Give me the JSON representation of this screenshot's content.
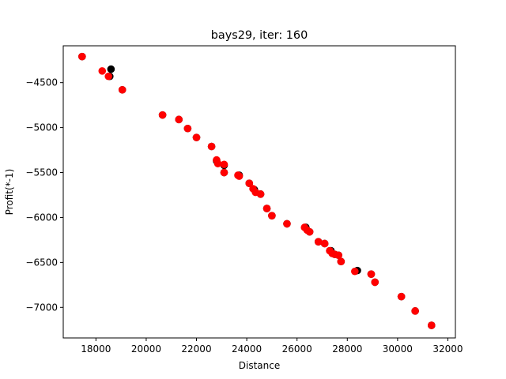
{
  "chart_data": {
    "type": "scatter",
    "title": "bays29, iter: 160",
    "xlabel": "Distance",
    "ylabel": "Profit(*-1)",
    "xlim": [
      16700,
      32300
    ],
    "ylim": [
      -7340,
      -4090
    ],
    "xticks": [
      18000,
      20000,
      22000,
      24000,
      26000,
      28000,
      30000,
      32000
    ],
    "yticks": [
      -7000,
      -6500,
      -6000,
      -5500,
      -5000,
      -4500
    ],
    "grid": false,
    "series": [
      {
        "color": "#000000",
        "points": [
          [
            17450,
            -4210
          ],
          [
            18600,
            -4350
          ],
          [
            18550,
            -4430
          ],
          [
            19050,
            -4580
          ],
          [
            20650,
            -4860
          ],
          [
            21300,
            -4910
          ],
          [
            21650,
            -5010
          ],
          [
            22000,
            -5110
          ],
          [
            22600,
            -5210
          ],
          [
            22800,
            -5370
          ],
          [
            23100,
            -5420
          ],
          [
            23100,
            -5500
          ],
          [
            23700,
            -5530
          ],
          [
            24100,
            -5620
          ],
          [
            24300,
            -5690
          ],
          [
            24550,
            -5740
          ],
          [
            24800,
            -5900
          ],
          [
            25000,
            -5980
          ],
          [
            25600,
            -6070
          ],
          [
            26350,
            -6110
          ],
          [
            26500,
            -6160
          ],
          [
            26850,
            -6270
          ],
          [
            27100,
            -6290
          ],
          [
            27350,
            -6370
          ],
          [
            27500,
            -6410
          ],
          [
            27650,
            -6420
          ],
          [
            27750,
            -6490
          ],
          [
            28400,
            -6590
          ],
          [
            28950,
            -6630
          ],
          [
            29100,
            -6720
          ],
          [
            30150,
            -6880
          ],
          [
            30700,
            -7040
          ],
          [
            31350,
            -7200
          ]
        ]
      },
      {
        "color": "#ff0000",
        "points": [
          [
            17450,
            -4210
          ],
          [
            18250,
            -4370
          ],
          [
            18500,
            -4430
          ],
          [
            19050,
            -4580
          ],
          [
            20650,
            -4860
          ],
          [
            21300,
            -4910
          ],
          [
            21650,
            -5010
          ],
          [
            22000,
            -5110
          ],
          [
            22600,
            -5210
          ],
          [
            22800,
            -5360
          ],
          [
            22850,
            -5400
          ],
          [
            23100,
            -5410
          ],
          [
            23100,
            -5500
          ],
          [
            23650,
            -5530
          ],
          [
            23700,
            -5540
          ],
          [
            24100,
            -5620
          ],
          [
            24250,
            -5680
          ],
          [
            24350,
            -5720
          ],
          [
            24550,
            -5740
          ],
          [
            24800,
            -5900
          ],
          [
            25000,
            -5980
          ],
          [
            25600,
            -6070
          ],
          [
            26300,
            -6110
          ],
          [
            26400,
            -6140
          ],
          [
            26500,
            -6160
          ],
          [
            26850,
            -6270
          ],
          [
            27100,
            -6290
          ],
          [
            27300,
            -6370
          ],
          [
            27400,
            -6400
          ],
          [
            27500,
            -6410
          ],
          [
            27650,
            -6420
          ],
          [
            27750,
            -6490
          ],
          [
            28300,
            -6600
          ],
          [
            28950,
            -6630
          ],
          [
            29100,
            -6720
          ],
          [
            30150,
            -6880
          ],
          [
            30700,
            -7040
          ],
          [
            31350,
            -7200
          ]
        ]
      }
    ]
  }
}
